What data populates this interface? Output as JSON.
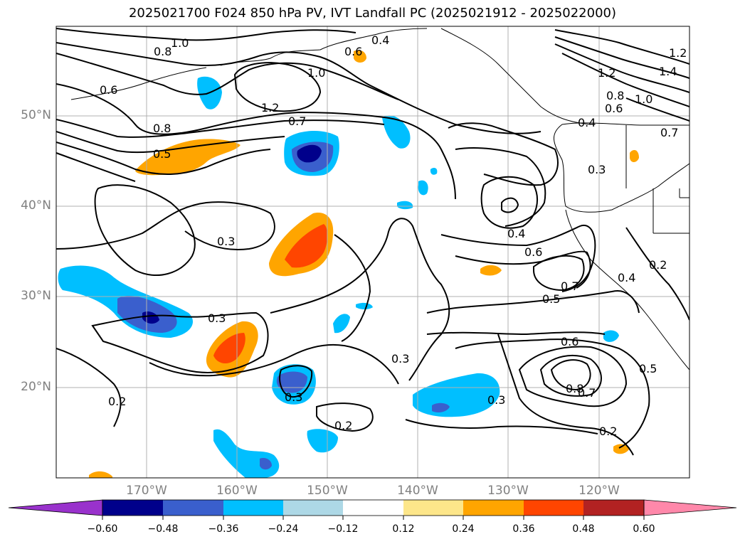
{
  "title": "2025021700 F024 850 hPa PV, IVT Landfall PC (2025021912 - 2025022000)",
  "map": {
    "lat_ticks": [
      "50°N",
      "40°N",
      "30°N",
      "20°N"
    ],
    "lon_ticks": [
      "170°W",
      "160°W",
      "150°W",
      "140°W",
      "130°W",
      "120°W"
    ]
  },
  "contour_labels": [
    "1.0",
    "0.8",
    "0.4",
    "0.6",
    "1.0",
    "0.6",
    "1.2",
    "0.7",
    "0.8",
    "0.5",
    "0.3",
    "0.4",
    "0.6",
    "0.7",
    "0.5",
    "0.3",
    "0.3",
    "0.6",
    "0.8",
    "0.7",
    "0.3",
    "0.2",
    "0.3",
    "0.2",
    "0.2",
    "0.5",
    "0.2",
    "0.4",
    "1.2",
    "1.4",
    "1.2",
    "1.0",
    "0.8",
    "0.6",
    "0.7",
    "0.4",
    "0.3"
  ],
  "colorbar": {
    "tick_labels": [
      "−0.60",
      "−0.48",
      "−0.36",
      "−0.24",
      "−0.12",
      "0.12",
      "0.24",
      "0.36",
      "0.48",
      "0.60"
    ],
    "colors": [
      "#9932cc",
      "#00008b",
      "#3a5fcd",
      "#00bfff",
      "#add8e6",
      "#ffffff",
      "#fde68a",
      "#ffa500",
      "#ff4500",
      "#b22222",
      "#ff88aa"
    ]
  }
}
